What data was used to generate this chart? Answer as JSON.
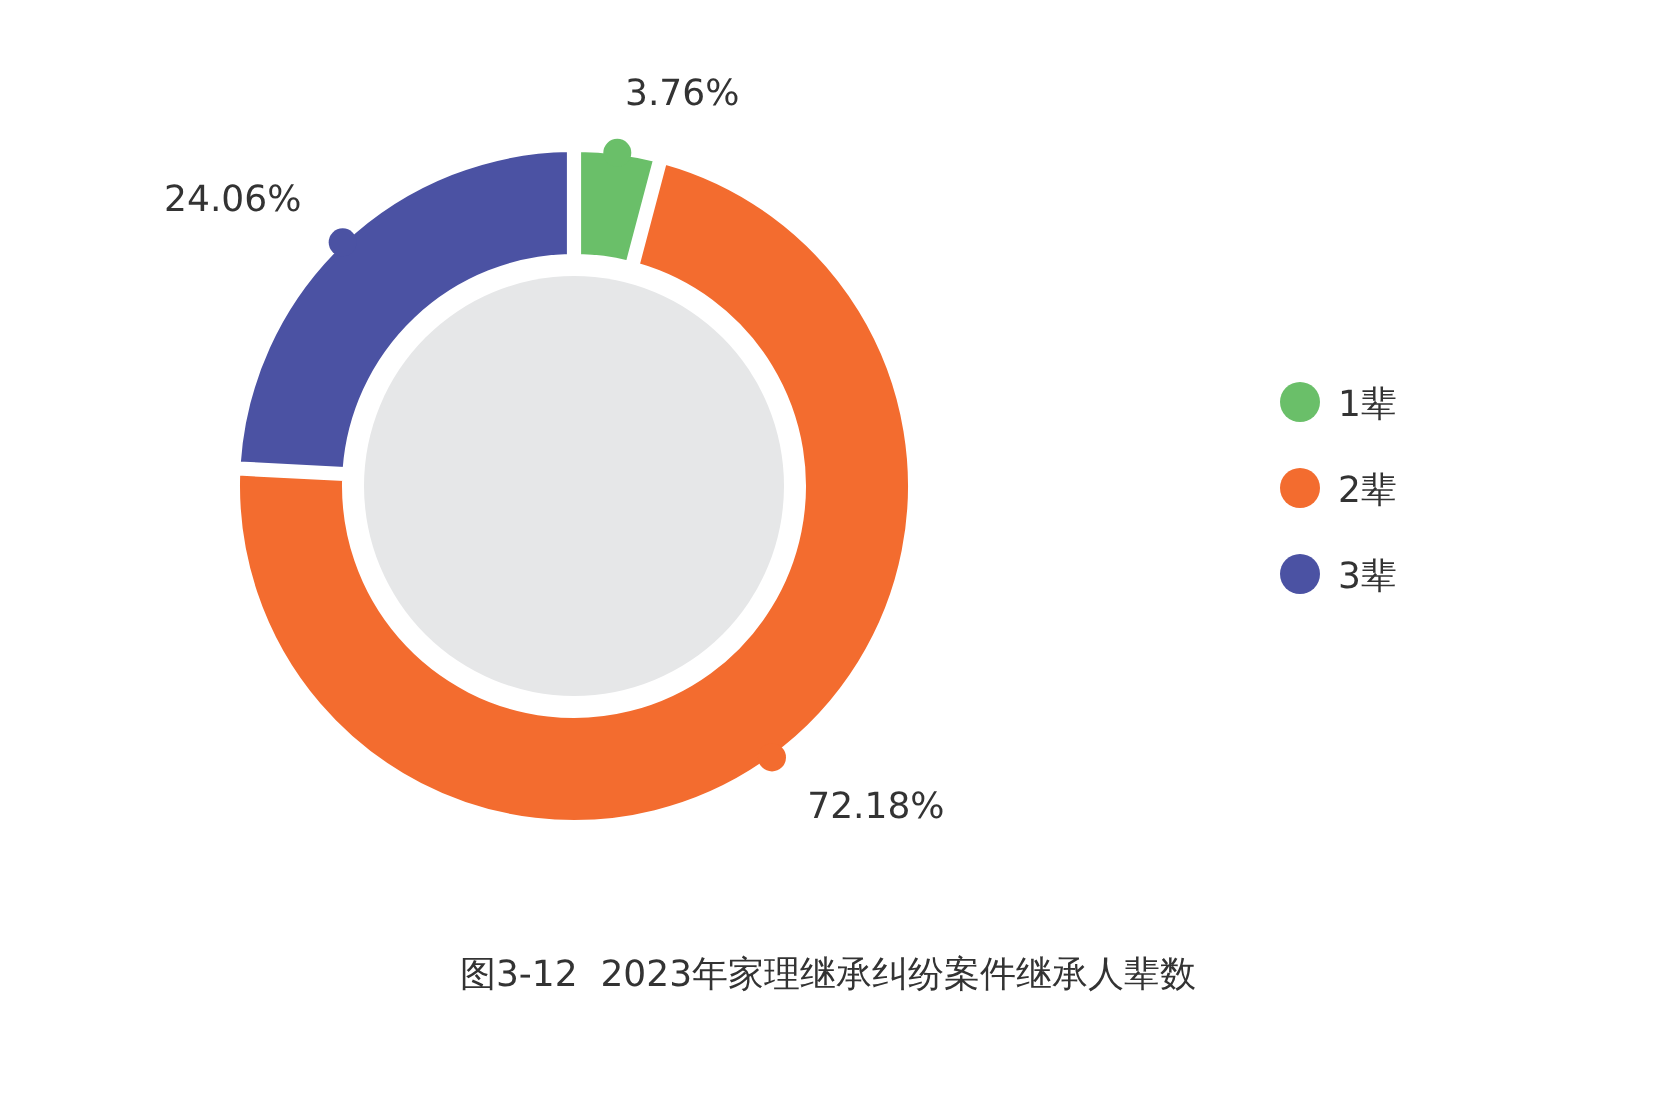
{
  "chart_data": {
    "type": "donut",
    "title": "图3-12  2023年家理继承纠纷案件继承人辈数",
    "categories": [
      "1辈",
      "2辈",
      "3辈"
    ],
    "values": [
      3.76,
      72.18,
      24.06
    ],
    "colors": [
      "#6abf69",
      "#f36c2f",
      "#4b52a3"
    ],
    "value_labels": [
      "3.76%",
      "72.18%",
      "24.06%"
    ],
    "legend": "right"
  }
}
